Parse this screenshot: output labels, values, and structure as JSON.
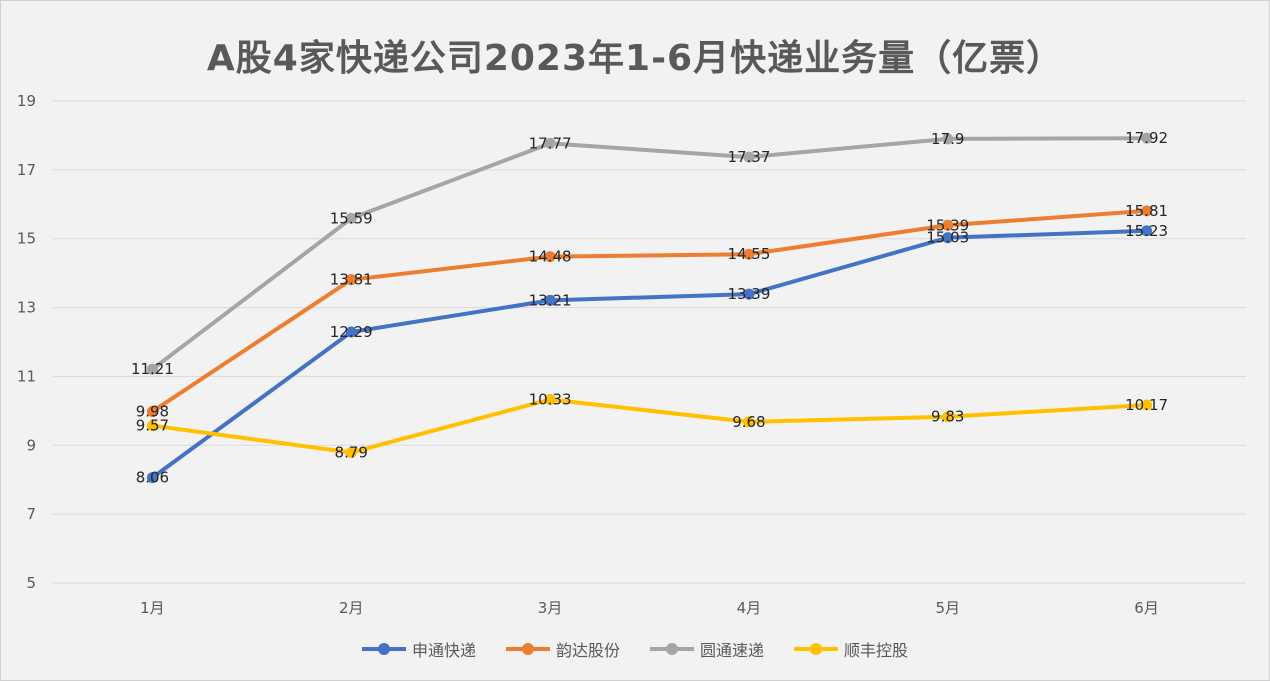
{
  "chart_data": {
    "type": "line",
    "title": "A股4家快递公司2023年1-6月快递业务量（亿票）",
    "xlabel": "",
    "ylabel": "",
    "categories": [
      "1月",
      "2月",
      "3月",
      "4月",
      "5月",
      "6月"
    ],
    "ylim": [
      5,
      19
    ],
    "yticks": [
      5,
      7,
      9,
      11,
      13,
      15,
      17,
      19
    ],
    "grid": true,
    "legend_position": "bottom",
    "series": [
      {
        "name": "申通快递",
        "color": "#4472c4",
        "values": [
          8.06,
          12.29,
          13.21,
          13.39,
          15.03,
          15.23
        ],
        "labels": [
          "8.06",
          "12.29",
          "13.21",
          "13.39",
          "15.03",
          "15.23"
        ]
      },
      {
        "name": "韵达股份",
        "color": "#ed7d31",
        "values": [
          9.98,
          13.81,
          14.48,
          14.55,
          15.39,
          15.81
        ],
        "labels": [
          "9.98",
          "13.81",
          "14.48",
          "14.55",
          "15.39",
          "15.81"
        ]
      },
      {
        "name": "圆通速递",
        "color": "#a5a5a5",
        "values": [
          11.21,
          15.59,
          17.77,
          17.37,
          17.9,
          17.92
        ],
        "labels": [
          "11.21",
          "15.59",
          "17.77",
          "17.37",
          "17.9",
          "17.92"
        ]
      },
      {
        "name": "顺丰控股",
        "color": "#ffc000",
        "values": [
          9.57,
          8.79,
          10.33,
          9.68,
          9.83,
          10.17
        ],
        "labels": [
          "9.57",
          "8.79",
          "10.33",
          "9.68",
          "9.83",
          "10.17"
        ]
      }
    ]
  }
}
